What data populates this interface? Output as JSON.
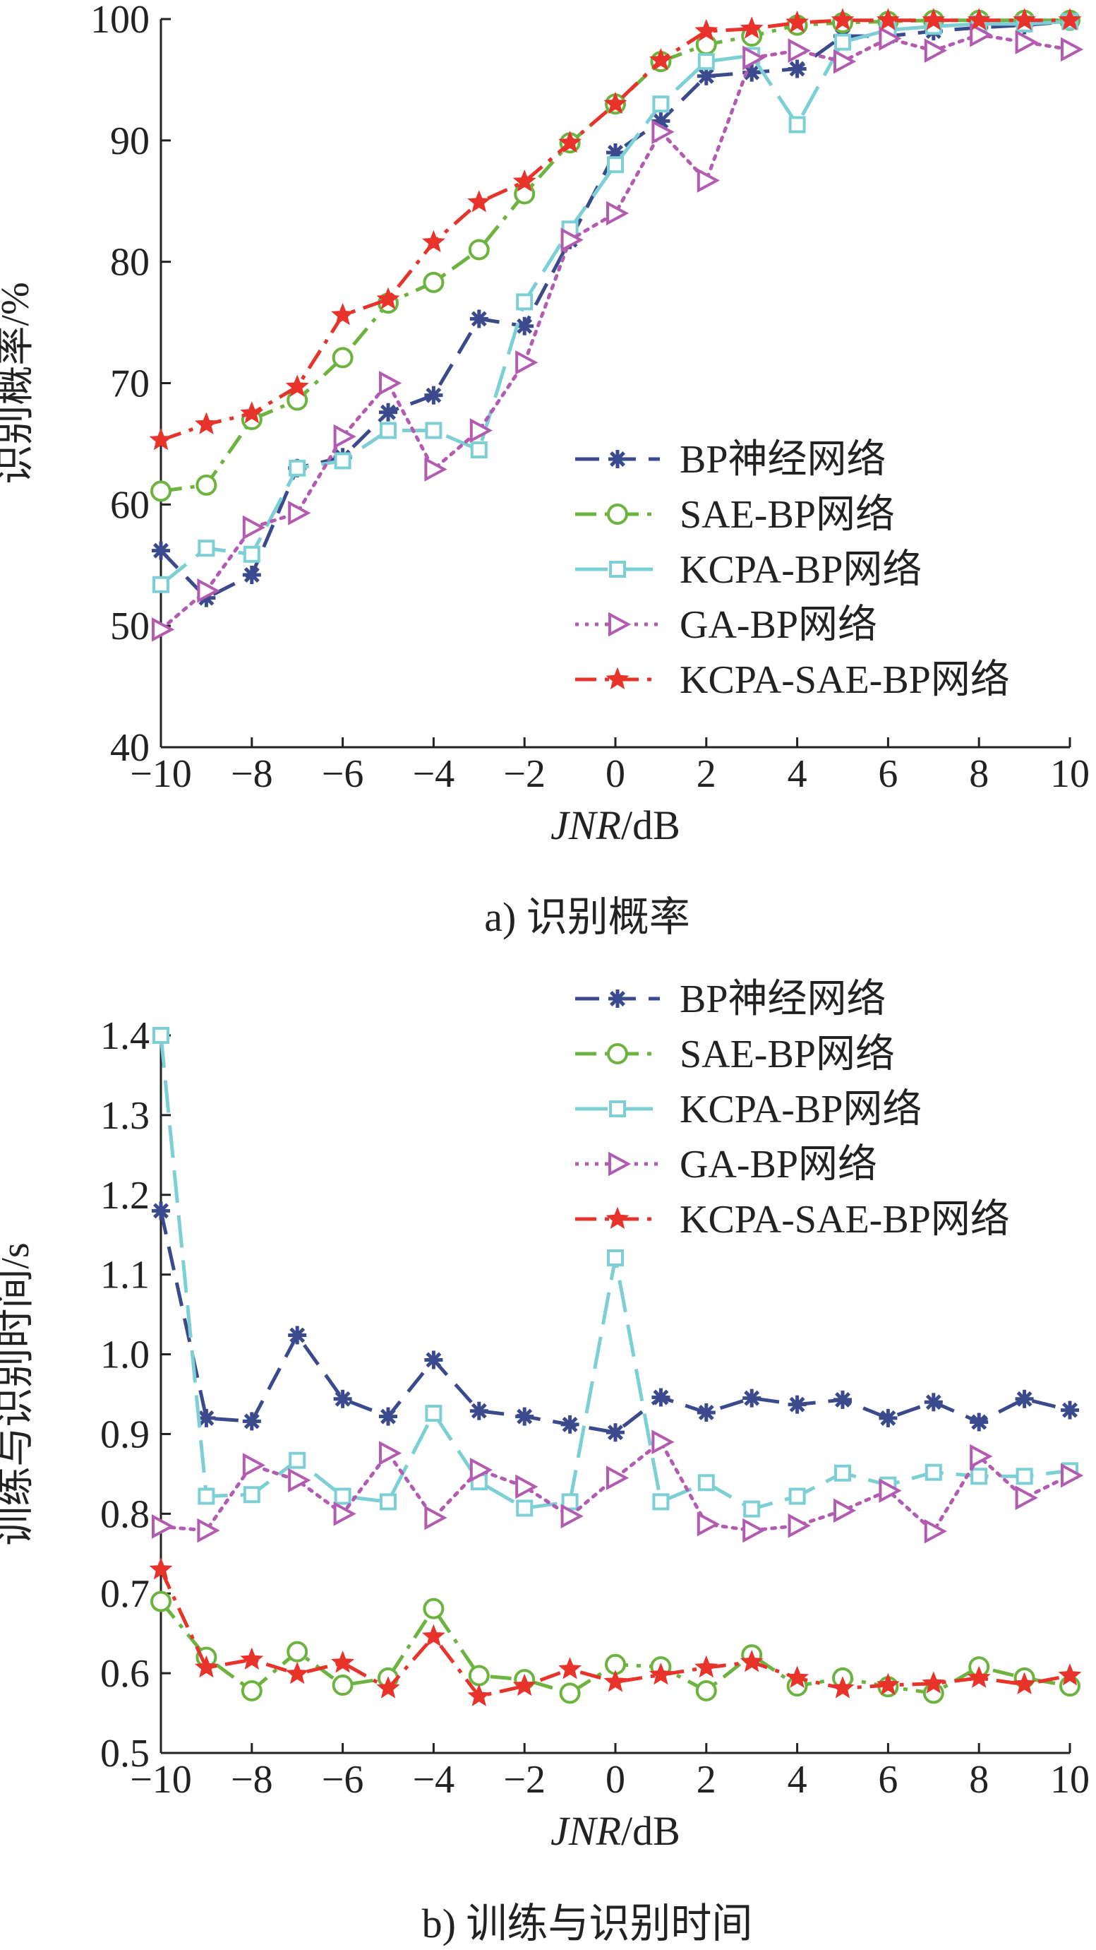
{
  "chart_data": [
    {
      "type": "line",
      "caption": "a) 识别概率",
      "xlabel": "JNR/dB",
      "xlabel_italic": "JNR",
      "xlabel_unit": "/dB",
      "ylabel": "识别概率/%",
      "xlim": [
        -10,
        10
      ],
      "ylim": [
        40,
        100
      ],
      "xticks": [
        "−10",
        "−8",
        "−6",
        "−4",
        "−2",
        "0",
        "2",
        "4",
        "6",
        "8",
        "10"
      ],
      "yticks": [
        "40",
        "50",
        "60",
        "70",
        "80",
        "90",
        "100"
      ],
      "legend_position": "center-right",
      "x": [
        -10,
        -9,
        -8,
        -7,
        -6,
        -5,
        -4,
        -3,
        -2,
        -1,
        0,
        1,
        2,
        3,
        4,
        5,
        6,
        7,
        8,
        9,
        10
      ],
      "series": [
        {
          "name": "BP神经网络",
          "color": "#3a4a8c",
          "marker": "asterisk",
          "dash": "dash",
          "values": [
            56.2,
            52.3,
            54.2,
            63.0,
            63.9,
            67.6,
            69.0,
            75.3,
            74.7,
            81.8,
            89.0,
            91.6,
            95.3,
            95.6,
            95.9,
            98.6,
            98.6,
            99.0,
            99.3,
            99.5,
            99.8
          ]
        },
        {
          "name": "SAE-BP网络",
          "color": "#6db33f",
          "marker": "circle",
          "dash": "dashdot",
          "values": [
            61.1,
            61.6,
            67.0,
            68.6,
            72.1,
            76.6,
            78.3,
            81.0,
            85.6,
            89.8,
            93.0,
            96.5,
            97.9,
            98.6,
            99.5,
            99.7,
            99.8,
            99.9,
            99.9,
            99.9,
            99.9
          ]
        },
        {
          "name": "KCPA-BP网络",
          "color": "#7ccfd4",
          "marker": "square",
          "dash": "longdash",
          "values": [
            53.4,
            56.4,
            55.9,
            63.0,
            63.6,
            66.1,
            66.1,
            64.5,
            76.7,
            82.7,
            88.0,
            93.0,
            96.5,
            97.0,
            91.3,
            98.1,
            99.1,
            99.4,
            99.6,
            99.6,
            99.8
          ]
        },
        {
          "name": "GA-BP网络",
          "color": "#b35bb0",
          "marker": "triangle-right",
          "dash": "dot",
          "values": [
            49.7,
            52.9,
            58.1,
            59.3,
            65.6,
            70.0,
            62.9,
            66.1,
            71.7,
            81.8,
            84.0,
            90.7,
            86.7,
            96.8,
            97.4,
            96.5,
            98.4,
            97.4,
            98.7,
            98.1,
            97.5
          ]
        },
        {
          "name": "KCPA-SAE-BP网络",
          "color": "#e8332a",
          "marker": "star",
          "dash": "dashdot",
          "values": [
            65.3,
            66.6,
            67.5,
            69.7,
            75.6,
            76.9,
            81.6,
            84.9,
            86.6,
            89.8,
            93.0,
            96.6,
            99.0,
            99.2,
            99.7,
            99.9,
            99.9,
            99.9,
            99.9,
            99.9,
            99.9
          ]
        }
      ]
    },
    {
      "type": "line",
      "caption": "b) 训练与识别时间",
      "xlabel": "JNR/dB",
      "xlabel_italic": "JNR",
      "xlabel_unit": "/dB",
      "ylabel": "训练与识别时间/s",
      "xlim": [
        -10,
        10
      ],
      "ylim": [
        0.5,
        1.4
      ],
      "xticks": [
        "−10",
        "−8",
        "−6",
        "−4",
        "−2",
        "0",
        "2",
        "4",
        "6",
        "8",
        "10"
      ],
      "yticks": [
        "0.5",
        "0.6",
        "0.7",
        "0.8",
        "0.9",
        "1.0",
        "1.1",
        "1.2",
        "1.3",
        "1.4"
      ],
      "legend_position": "top-right",
      "x": [
        -10,
        -9,
        -8,
        -7,
        -6,
        -5,
        -4,
        -3,
        -2,
        -1,
        0,
        1,
        2,
        3,
        4,
        5,
        6,
        7,
        8,
        9,
        10
      ],
      "series": [
        {
          "name": "BP神经网络",
          "color": "#3a4a8c",
          "marker": "asterisk",
          "dash": "dash",
          "values": [
            1.18,
            0.92,
            0.916,
            1.024,
            0.944,
            0.922,
            0.993,
            0.929,
            0.922,
            0.912,
            0.902,
            0.946,
            0.927,
            0.945,
            0.937,
            0.943,
            0.92,
            0.94,
            0.915,
            0.944,
            0.93
          ]
        },
        {
          "name": "SAE-BP网络",
          "color": "#6db33f",
          "marker": "circle",
          "dash": "dashdot",
          "values": [
            0.69,
            0.62,
            0.578,
            0.627,
            0.585,
            0.594,
            0.681,
            0.597,
            0.592,
            0.575,
            0.611,
            0.608,
            0.578,
            0.623,
            0.584,
            0.594,
            0.583,
            0.575,
            0.608,
            0.594,
            0.584
          ]
        },
        {
          "name": "KCPA-BP网络",
          "color": "#7ccfd4",
          "marker": "square",
          "dash": "longdash",
          "values": [
            1.4,
            0.822,
            0.824,
            0.867,
            0.822,
            0.815,
            0.926,
            0.84,
            0.807,
            0.815,
            1.121,
            0.815,
            0.839,
            0.806,
            0.822,
            0.851,
            0.836,
            0.852,
            0.847,
            0.847,
            0.854
          ]
        },
        {
          "name": "GA-BP网络",
          "color": "#b35bb0",
          "marker": "triangle-right",
          "dash": "dot",
          "values": [
            0.784,
            0.779,
            0.861,
            0.842,
            0.8,
            0.876,
            0.795,
            0.855,
            0.834,
            0.797,
            0.845,
            0.89,
            0.787,
            0.779,
            0.785,
            0.804,
            0.829,
            0.778,
            0.872,
            0.82,
            0.848
          ]
        },
        {
          "name": "KCPA-SAE-BP网络",
          "color": "#e8332a",
          "marker": "star",
          "dash": "dashdot",
          "values": [
            0.73,
            0.607,
            0.617,
            0.599,
            0.613,
            0.581,
            0.646,
            0.571,
            0.584,
            0.605,
            0.589,
            0.598,
            0.607,
            0.614,
            0.594,
            0.581,
            0.585,
            0.587,
            0.594,
            0.586,
            0.597
          ]
        }
      ]
    }
  ]
}
